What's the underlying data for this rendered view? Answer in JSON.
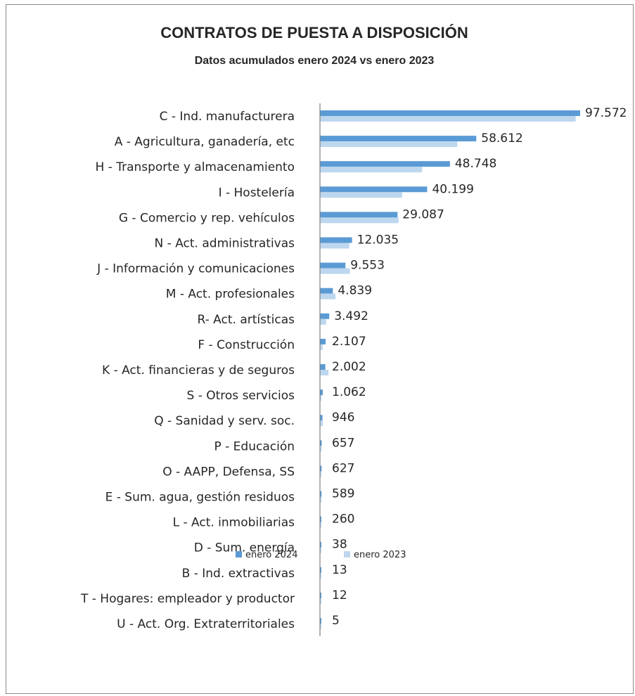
{
  "chart_data": {
    "type": "bar",
    "orientation": "horizontal",
    "title": "CONTRATOS DE PUESTA A DISPOSICIÓN",
    "subtitle": "Datos acumulados  enero 2024 vs enero 2023",
    "categories": [
      "C - Ind. manufacturera",
      "A - Agricultura, ganadería, etc",
      "H - Transporte y almacenamiento",
      "I - Hostelería",
      "G - Comercio y rep. vehículos",
      "N - Act. administrativas",
      "J - Información y comunicaciones",
      "M - Act. profesionales",
      "R-  Act. artísticas",
      "F - Construcción",
      "K - Act. financieras y de seguros",
      "S - Otros servicios",
      "Q - Sanidad y serv. soc.",
      "P - Educación",
      "O - AAPP, Defensa, SS",
      "E - Sum. agua, gestión residuos",
      "L - Act. inmobiliarias",
      "D - Sum. energía ",
      "B - Ind. extractivas",
      "T - Hogares: empleador y productor",
      "U - Act. Org. Extraterritoriales"
    ],
    "series": [
      {
        "name": "enero 2024",
        "color": "#5b9bd5",
        "values": [
          97572,
          58612,
          48748,
          40199,
          29087,
          12035,
          9553,
          4839,
          3492,
          2107,
          2002,
          1062,
          946,
          657,
          627,
          589,
          260,
          38,
          13,
          12,
          5
        ]
      },
      {
        "name": "enero 2023",
        "color": "#bdd7ee",
        "values": [
          95900,
          51500,
          38300,
          30800,
          29500,
          11000,
          11200,
          5800,
          2300,
          1000,
          3200,
          500,
          1100,
          600,
          450,
          600,
          300,
          30,
          20,
          10,
          5
        ]
      }
    ],
    "data_labels": [
      "97.572",
      "58.612",
      "48.748",
      "40.199",
      "29.087",
      "12.035",
      "9.553",
      "4.839",
      "3.492",
      "2.107",
      "2.002",
      "1.062",
      "946",
      "657",
      "627",
      "589",
      "260",
      "38",
      "13",
      "12",
      "5"
    ],
    "xlim": [
      0,
      97572
    ],
    "grid": false,
    "legend_position": "bottom"
  }
}
